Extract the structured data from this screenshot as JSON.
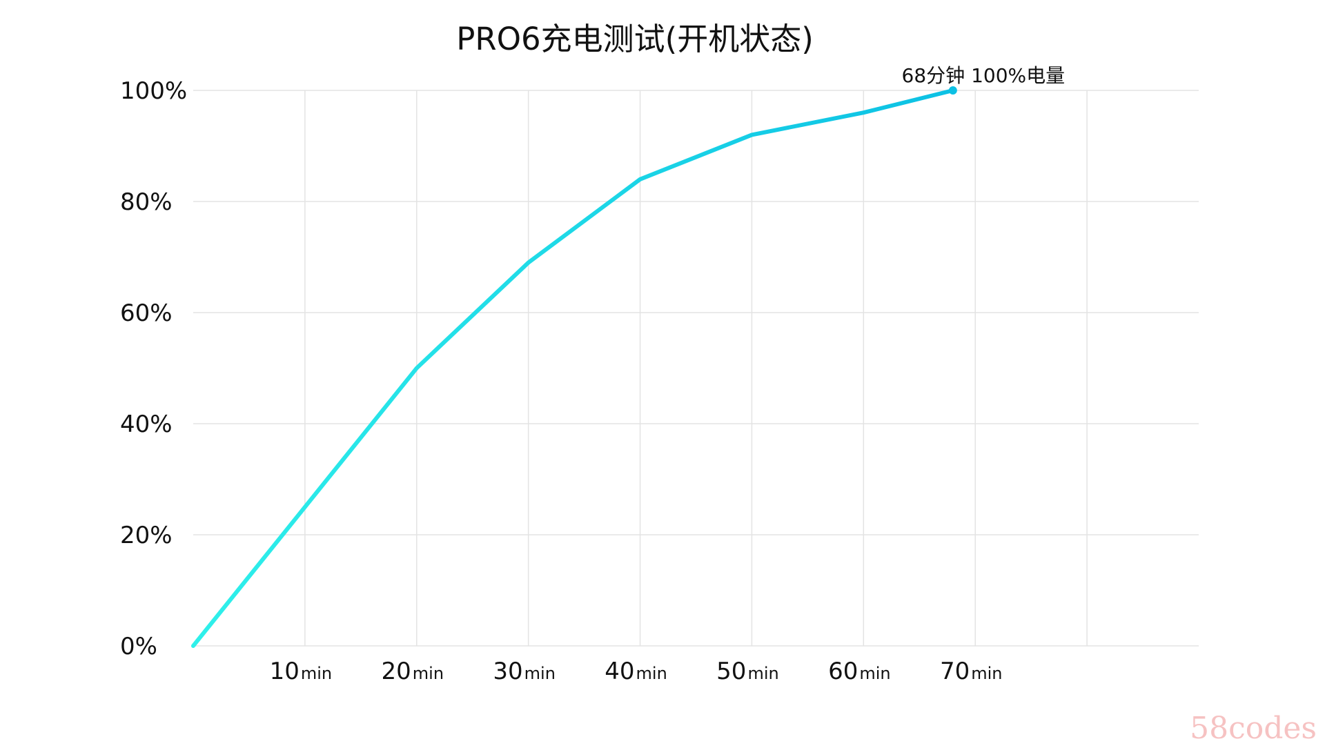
{
  "chart_data": {
    "type": "line",
    "title": "PRO6充电测试(开机状态)",
    "xlabel": "",
    "ylabel": "",
    "x_unit": "min",
    "x_ticks": [
      10,
      20,
      30,
      40,
      50,
      60,
      70
    ],
    "xlim": [
      0,
      90
    ],
    "y_ticks": [
      "0%",
      "20%",
      "40%",
      "60%",
      "80%",
      "100%"
    ],
    "ylim": [
      0,
      100
    ],
    "grid": true,
    "line_color_start": "#2ff0ea",
    "line_color_end": "#0cc0e4",
    "series": [
      {
        "x": [
          0,
          10,
          20,
          30,
          40,
          50,
          60,
          68
        ],
        "y": [
          0,
          25,
          50,
          69,
          84,
          92,
          96,
          100
        ]
      }
    ],
    "annotation": {
      "text": "68分钟 100%电量",
      "x": 68,
      "y": 100
    }
  },
  "watermark": "58codes"
}
